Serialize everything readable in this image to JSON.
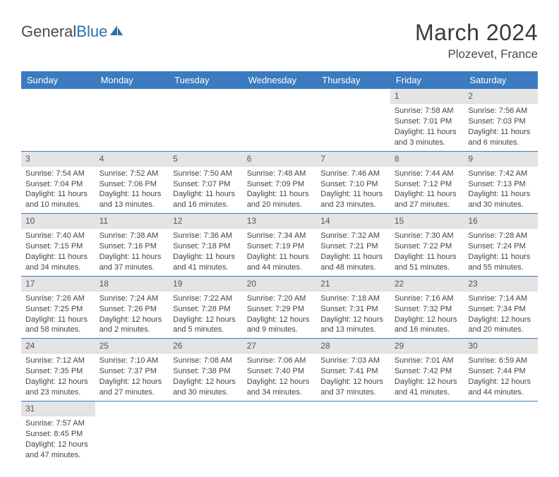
{
  "brand": {
    "part1": "General",
    "part2": "Blue"
  },
  "title": "March 2024",
  "location": "Plozevet, France",
  "colors": {
    "header_bg": "#3b7bbf",
    "header_fg": "#ffffff",
    "daynum_bg": "#e4e4e4",
    "rule": "#3b7bbf",
    "text": "#444444",
    "page_bg": "#ffffff"
  },
  "weekdays": [
    "Sunday",
    "Monday",
    "Tuesday",
    "Wednesday",
    "Thursday",
    "Friday",
    "Saturday"
  ],
  "weeks": [
    [
      null,
      null,
      null,
      null,
      null,
      {
        "n": "1",
        "sunrise": "7:58 AM",
        "sunset": "7:01 PM",
        "dl1": "Daylight: 11 hours",
        "dl2": "and 3 minutes."
      },
      {
        "n": "2",
        "sunrise": "7:56 AM",
        "sunset": "7:03 PM",
        "dl1": "Daylight: 11 hours",
        "dl2": "and 6 minutes."
      }
    ],
    [
      {
        "n": "3",
        "sunrise": "7:54 AM",
        "sunset": "7:04 PM",
        "dl1": "Daylight: 11 hours",
        "dl2": "and 10 minutes."
      },
      {
        "n": "4",
        "sunrise": "7:52 AM",
        "sunset": "7:06 PM",
        "dl1": "Daylight: 11 hours",
        "dl2": "and 13 minutes."
      },
      {
        "n": "5",
        "sunrise": "7:50 AM",
        "sunset": "7:07 PM",
        "dl1": "Daylight: 11 hours",
        "dl2": "and 16 minutes."
      },
      {
        "n": "6",
        "sunrise": "7:48 AM",
        "sunset": "7:09 PM",
        "dl1": "Daylight: 11 hours",
        "dl2": "and 20 minutes."
      },
      {
        "n": "7",
        "sunrise": "7:46 AM",
        "sunset": "7:10 PM",
        "dl1": "Daylight: 11 hours",
        "dl2": "and 23 minutes."
      },
      {
        "n": "8",
        "sunrise": "7:44 AM",
        "sunset": "7:12 PM",
        "dl1": "Daylight: 11 hours",
        "dl2": "and 27 minutes."
      },
      {
        "n": "9",
        "sunrise": "7:42 AM",
        "sunset": "7:13 PM",
        "dl1": "Daylight: 11 hours",
        "dl2": "and 30 minutes."
      }
    ],
    [
      {
        "n": "10",
        "sunrise": "7:40 AM",
        "sunset": "7:15 PM",
        "dl1": "Daylight: 11 hours",
        "dl2": "and 34 minutes."
      },
      {
        "n": "11",
        "sunrise": "7:38 AM",
        "sunset": "7:16 PM",
        "dl1": "Daylight: 11 hours",
        "dl2": "and 37 minutes."
      },
      {
        "n": "12",
        "sunrise": "7:36 AM",
        "sunset": "7:18 PM",
        "dl1": "Daylight: 11 hours",
        "dl2": "and 41 minutes."
      },
      {
        "n": "13",
        "sunrise": "7:34 AM",
        "sunset": "7:19 PM",
        "dl1": "Daylight: 11 hours",
        "dl2": "and 44 minutes."
      },
      {
        "n": "14",
        "sunrise": "7:32 AM",
        "sunset": "7:21 PM",
        "dl1": "Daylight: 11 hours",
        "dl2": "and 48 minutes."
      },
      {
        "n": "15",
        "sunrise": "7:30 AM",
        "sunset": "7:22 PM",
        "dl1": "Daylight: 11 hours",
        "dl2": "and 51 minutes."
      },
      {
        "n": "16",
        "sunrise": "7:28 AM",
        "sunset": "7:24 PM",
        "dl1": "Daylight: 11 hours",
        "dl2": "and 55 minutes."
      }
    ],
    [
      {
        "n": "17",
        "sunrise": "7:26 AM",
        "sunset": "7:25 PM",
        "dl1": "Daylight: 11 hours",
        "dl2": "and 58 minutes."
      },
      {
        "n": "18",
        "sunrise": "7:24 AM",
        "sunset": "7:26 PM",
        "dl1": "Daylight: 12 hours",
        "dl2": "and 2 minutes."
      },
      {
        "n": "19",
        "sunrise": "7:22 AM",
        "sunset": "7:28 PM",
        "dl1": "Daylight: 12 hours",
        "dl2": "and 5 minutes."
      },
      {
        "n": "20",
        "sunrise": "7:20 AM",
        "sunset": "7:29 PM",
        "dl1": "Daylight: 12 hours",
        "dl2": "and 9 minutes."
      },
      {
        "n": "21",
        "sunrise": "7:18 AM",
        "sunset": "7:31 PM",
        "dl1": "Daylight: 12 hours",
        "dl2": "and 13 minutes."
      },
      {
        "n": "22",
        "sunrise": "7:16 AM",
        "sunset": "7:32 PM",
        "dl1": "Daylight: 12 hours",
        "dl2": "and 16 minutes."
      },
      {
        "n": "23",
        "sunrise": "7:14 AM",
        "sunset": "7:34 PM",
        "dl1": "Daylight: 12 hours",
        "dl2": "and 20 minutes."
      }
    ],
    [
      {
        "n": "24",
        "sunrise": "7:12 AM",
        "sunset": "7:35 PM",
        "dl1": "Daylight: 12 hours",
        "dl2": "and 23 minutes."
      },
      {
        "n": "25",
        "sunrise": "7:10 AM",
        "sunset": "7:37 PM",
        "dl1": "Daylight: 12 hours",
        "dl2": "and 27 minutes."
      },
      {
        "n": "26",
        "sunrise": "7:08 AM",
        "sunset": "7:38 PM",
        "dl1": "Daylight: 12 hours",
        "dl2": "and 30 minutes."
      },
      {
        "n": "27",
        "sunrise": "7:06 AM",
        "sunset": "7:40 PM",
        "dl1": "Daylight: 12 hours",
        "dl2": "and 34 minutes."
      },
      {
        "n": "28",
        "sunrise": "7:03 AM",
        "sunset": "7:41 PM",
        "dl1": "Daylight: 12 hours",
        "dl2": "and 37 minutes."
      },
      {
        "n": "29",
        "sunrise": "7:01 AM",
        "sunset": "7:42 PM",
        "dl1": "Daylight: 12 hours",
        "dl2": "and 41 minutes."
      },
      {
        "n": "30",
        "sunrise": "6:59 AM",
        "sunset": "7:44 PM",
        "dl1": "Daylight: 12 hours",
        "dl2": "and 44 minutes."
      }
    ],
    [
      {
        "n": "31",
        "sunrise": "7:57 AM",
        "sunset": "8:45 PM",
        "dl1": "Daylight: 12 hours",
        "dl2": "and 47 minutes."
      },
      null,
      null,
      null,
      null,
      null,
      null
    ]
  ],
  "labels": {
    "sunrise": "Sunrise: ",
    "sunset": "Sunset: "
  }
}
